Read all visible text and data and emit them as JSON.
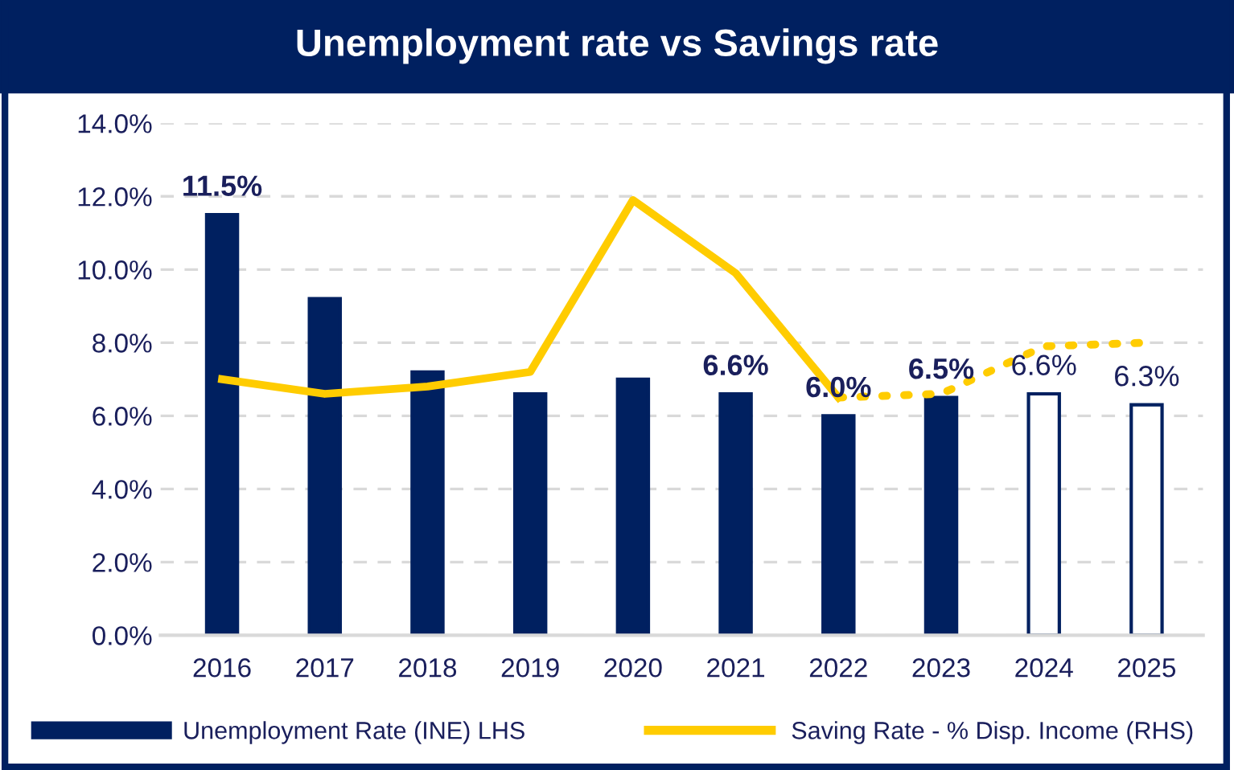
{
  "chart_data": {
    "type": "bar",
    "title": "Unemployment rate vs Savings rate",
    "categories": [
      "2016",
      "2017",
      "2018",
      "2019",
      "2020",
      "2021",
      "2022",
      "2023",
      "2024",
      "2025"
    ],
    "series": [
      {
        "name": "Unemployment Rate (INE) LHS",
        "color": "#002060",
        "colors": [
          "#002060",
          "#002060",
          "#002060",
          "#002060",
          "#002060",
          "#002060",
          "#002060",
          "#002060",
          "#ffffff",
          "#ffffff"
        ],
        "values": [
          11.5,
          9.2,
          7.2,
          6.6,
          7.0,
          6.6,
          6.0,
          6.5,
          6.6,
          6.3
        ],
        "value_labels": [
          "11.5%",
          null,
          null,
          null,
          null,
          "6.6%",
          "6.0%",
          "6.5%",
          "6.6%",
          "6.3%"
        ]
      },
      {
        "name": "Saving Rate - % Disp. Income (RHS)",
        "type": "line",
        "color": "#ffcc00",
        "line_style": "solid",
        "values": [
          7.0,
          6.6,
          6.8,
          7.2,
          11.9,
          9.9,
          6.5,
          null,
          null,
          null
        ]
      },
      {
        "type": "line",
        "color": "#ffcc00",
        "line_style": "dotted",
        "values": [
          null,
          null,
          null,
          null,
          null,
          null,
          6.5,
          6.6,
          7.9,
          8.0
        ]
      }
    ],
    "ylim": [
      0,
      14
    ],
    "yticks": [
      {
        "value": 0,
        "label": "0.0%"
      },
      {
        "value": 2,
        "label": "2.0%"
      },
      {
        "value": 4,
        "label": "4.0%"
      },
      {
        "value": 6,
        "label": "6.0%"
      },
      {
        "value": 8,
        "label": "8.0%"
      },
      {
        "value": 10,
        "label": "10.0%"
      },
      {
        "value": 12,
        "label": "12.0%"
      },
      {
        "value": 14,
        "label": "14.0%"
      }
    ],
    "grid": "y",
    "legend": "bottom"
  }
}
